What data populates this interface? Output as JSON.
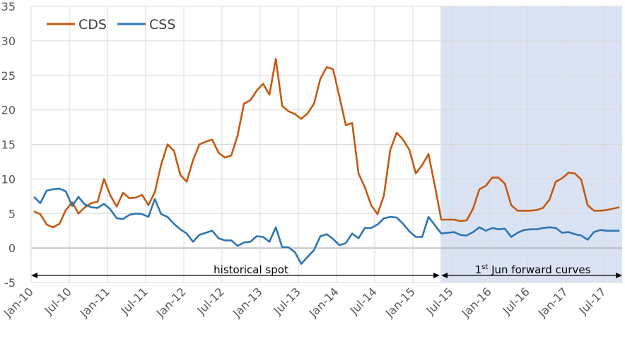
{
  "chart_data": {
    "type": "line",
    "title": "",
    "xlabel": "",
    "ylabel": "",
    "ylim": [
      -5,
      35
    ],
    "yticks": [
      "-5",
      "0",
      "5",
      "10",
      "15",
      "20",
      "25",
      "30",
      "35"
    ],
    "x_start": "2010-01",
    "x_end": "2017-09",
    "x_frequency": "monthly",
    "xtick_labels": [
      "Jan-10",
      "Jul-10",
      "Jan-11",
      "Jul-11",
      "Jan-12",
      "Jul-12",
      "Jan-13",
      "Jul-13",
      "Jan-14",
      "Jul-14",
      "Jan-15",
      "Jul-15",
      "Jan-16",
      "Jul-16",
      "Jan-17",
      "Jul-17"
    ],
    "grid": true,
    "legend_placement": "top-left",
    "series": [
      {
        "name": "CDS",
        "color": "#C55A11",
        "values": [
          5.3,
          4.9,
          3.4,
          3.0,
          3.5,
          5.5,
          6.6,
          5.0,
          5.9,
          6.5,
          6.7,
          10.0,
          7.6,
          6.0,
          8.0,
          7.2,
          7.3,
          7.7,
          6.2,
          8.1,
          12.1,
          15.0,
          14.1,
          10.6,
          9.6,
          12.7,
          15.0,
          15.4,
          15.7,
          13.8,
          13.1,
          13.4,
          16.3,
          20.9,
          21.4,
          22.8,
          23.8,
          22.2,
          27.4,
          20.6,
          19.8,
          19.4,
          18.7,
          19.5,
          20.9,
          24.5,
          26.2,
          25.9,
          21.9,
          17.8,
          18.1,
          10.8,
          8.8,
          6.2,
          4.9,
          7.6,
          14.2,
          16.7,
          15.7,
          14.2,
          10.8,
          12.0,
          13.6,
          9.0,
          4.1,
          4.1,
          4.1,
          3.9,
          4.0,
          5.7,
          8.5,
          9.0,
          10.2,
          10.2,
          9.3,
          6.2,
          5.4,
          5.4,
          5.4,
          5.5,
          5.8,
          7.0,
          9.6,
          10.1,
          10.9,
          10.8,
          9.9,
          6.2,
          5.4,
          5.4,
          5.5,
          5.7,
          5.9
        ]
      },
      {
        "name": "CSS",
        "color": "#2E75B6",
        "values": [
          7.4,
          6.5,
          8.3,
          8.5,
          8.6,
          8.2,
          6.1,
          7.4,
          6.3,
          5.9,
          5.8,
          6.4,
          5.6,
          4.3,
          4.2,
          4.8,
          5.0,
          4.9,
          4.5,
          7.1,
          4.9,
          4.5,
          3.5,
          2.7,
          2.1,
          0.9,
          1.9,
          2.2,
          2.5,
          1.4,
          1.1,
          1.1,
          0.3,
          0.8,
          0.9,
          1.7,
          1.6,
          0.9,
          3.0,
          0.1,
          0.1,
          -0.6,
          -2.3,
          -1.3,
          -0.3,
          1.7,
          2.0,
          1.3,
          0.4,
          0.7,
          2.1,
          1.4,
          2.9,
          2.9,
          3.4,
          4.3,
          4.5,
          4.4,
          3.5,
          2.4,
          1.6,
          1.6,
          4.5,
          3.3,
          2.1,
          2.2,
          2.3,
          1.9,
          1.8,
          2.3,
          3.0,
          2.5,
          2.9,
          2.7,
          2.8,
          1.6,
          2.2,
          2.6,
          2.7,
          2.7,
          2.9,
          3.0,
          2.9,
          2.2,
          2.3,
          2.0,
          1.8,
          1.2,
          2.3,
          2.6,
          2.5,
          2.5,
          2.5
        ]
      }
    ],
    "shaded_region": {
      "start": "2015-05",
      "end": "2017-09",
      "color": "#DAE3F3"
    },
    "annotations": {
      "historical": {
        "text": "historical spot",
        "start": "2010-01",
        "end": "2015-05"
      },
      "forward": {
        "prefix": "1",
        "superscript": "st",
        "text": " Jun forward curves",
        "start": "2015-05",
        "end": "2017-09"
      }
    }
  }
}
